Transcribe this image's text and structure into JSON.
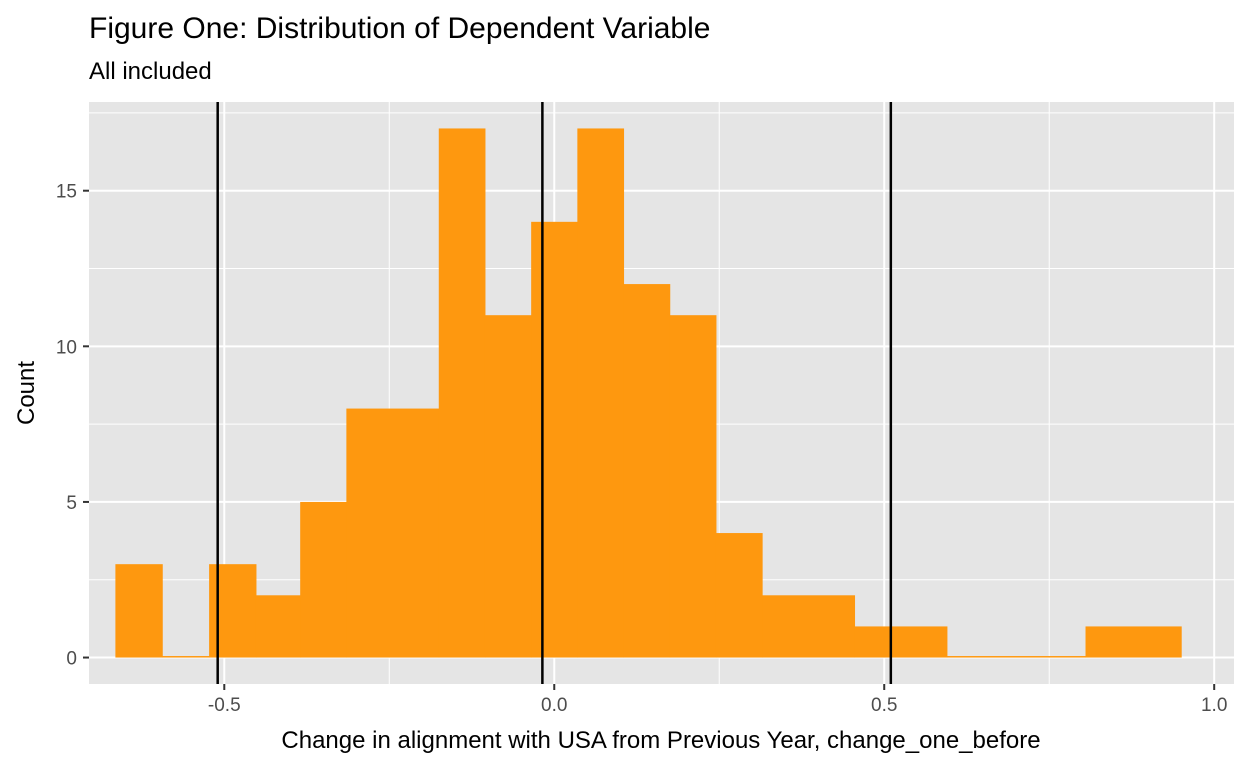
{
  "chart_data": {
    "type": "bar",
    "title": "Figure One: Distribution of Dependent Variable",
    "subtitle": "All included",
    "xlabel": "Change in alignment with USA from Previous Year, change_one_before",
    "ylabel": "Count",
    "xlim": [
      -0.705,
      1.03
    ],
    "ylim": [
      -0.85,
      17.85
    ],
    "x_ticks": [
      {
        "value": -0.5,
        "label": "-0.5"
      },
      {
        "value": 0.0,
        "label": "0.0"
      },
      {
        "value": 0.5,
        "label": "0.5"
      },
      {
        "value": 1.0,
        "label": "1.0"
      }
    ],
    "y_ticks": [
      {
        "value": 0,
        "label": "0"
      },
      {
        "value": 5,
        "label": "5"
      },
      {
        "value": 10,
        "label": "10"
      },
      {
        "value": 15,
        "label": "15"
      }
    ],
    "bins": [
      {
        "x0": -0.665,
        "x1": -0.594,
        "count": 3
      },
      {
        "x0": -0.594,
        "x1": -0.523,
        "count": 0
      },
      {
        "x0": -0.523,
        "x1": -0.452,
        "count": 3
      },
      {
        "x0": -0.452,
        "x1": -0.385,
        "count": 2
      },
      {
        "x0": -0.385,
        "x1": -0.315,
        "count": 5
      },
      {
        "x0": -0.315,
        "x1": -0.175,
        "count": 8
      },
      {
        "x0": -0.175,
        "x1": -0.105,
        "count": 17
      },
      {
        "x0": -0.105,
        "x1": -0.035,
        "count": 11
      },
      {
        "x0": -0.035,
        "x1": 0.035,
        "count": 14
      },
      {
        "x0": 0.035,
        "x1": 0.105,
        "count": 17
      },
      {
        "x0": 0.105,
        "x1": 0.175,
        "count": 12
      },
      {
        "x0": 0.175,
        "x1": 0.245,
        "count": 11
      },
      {
        "x0": 0.245,
        "x1": 0.315,
        "count": 4
      },
      {
        "x0": 0.315,
        "x1": 0.455,
        "count": 2
      },
      {
        "x0": 0.455,
        "x1": 0.595,
        "count": 1
      },
      {
        "x0": 0.595,
        "x1": 0.805,
        "count": 0
      },
      {
        "x0": 0.805,
        "x1": 0.95,
        "count": 1
      }
    ],
    "reference_lines": [
      -0.51,
      -0.018,
      0.51
    ],
    "colors": {
      "bar": "#fe980f",
      "panel": "#e5e5e5",
      "grid": "#ffffff",
      "reference_line": "#000000"
    },
    "grid": true
  }
}
